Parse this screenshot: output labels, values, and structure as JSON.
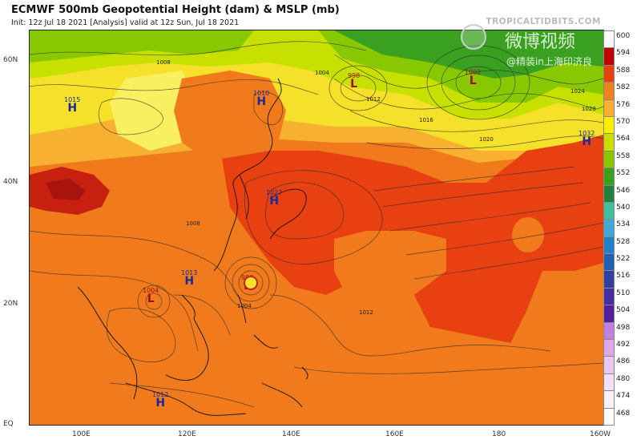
{
  "header": {
    "title": "ECMWF 500mb Geopotential Height (dam) & MSLP (mb)",
    "subtitle": "Init: 12z Jul 18 2021   [Analysis]   valid at 12z Sun, Jul 18 2021",
    "credit": "TROPICALTIDBITS.COM"
  },
  "watermark": {
    "logo": "weibo-logo-icon",
    "main": "微博视频",
    "sub": "@精装in上海印济良"
  },
  "axes": {
    "lat_labels": [
      "60N",
      "40N",
      "20N",
      "EQ"
    ],
    "lon_labels": [
      "100E",
      "120E",
      "140E",
      "160E",
      "180",
      "160W"
    ]
  },
  "legend": {
    "values": [
      "600",
      "594",
      "588",
      "582",
      "576",
      "570",
      "564",
      "558",
      "552",
      "546",
      "540",
      "534",
      "528",
      "522",
      "516",
      "510",
      "504",
      "498",
      "492",
      "486",
      "480",
      "474",
      "468"
    ],
    "colors": [
      "#fdfdfd",
      "#c00000",
      "#e84010",
      "#f08020",
      "#f8b030",
      "#ffee00",
      "#c8e000",
      "#88c800",
      "#3aa020",
      "#208040",
      "#40c0a0",
      "#40a8d8",
      "#2080c8",
      "#2060b0",
      "#3040a0",
      "#4030a0",
      "#5020a0",
      "#c080e0",
      "#d8a8e8",
      "#e8c8f0",
      "#f0e0f8",
      "#f8f0fc",
      "#ffffff"
    ]
  },
  "pressure_centers": [
    {
      "type": "H",
      "value": "1015"
    },
    {
      "type": "H",
      "value": "1010"
    },
    {
      "type": "L",
      "value": "998"
    },
    {
      "type": "L",
      "value": "1002"
    },
    {
      "type": "H",
      "value": "1032"
    },
    {
      "type": "H",
      "value": "1027"
    },
    {
      "type": "H",
      "value": "1013"
    },
    {
      "type": "L",
      "value": "1004"
    },
    {
      "type": "L",
      "value": "996"
    },
    {
      "type": "H",
      "value": "1012"
    }
  ],
  "isobar_labels": [
    "1008",
    "1004",
    "1012",
    "1016",
    "1020",
    "1024",
    "1028",
    "1012",
    "1004",
    "1008"
  ]
}
